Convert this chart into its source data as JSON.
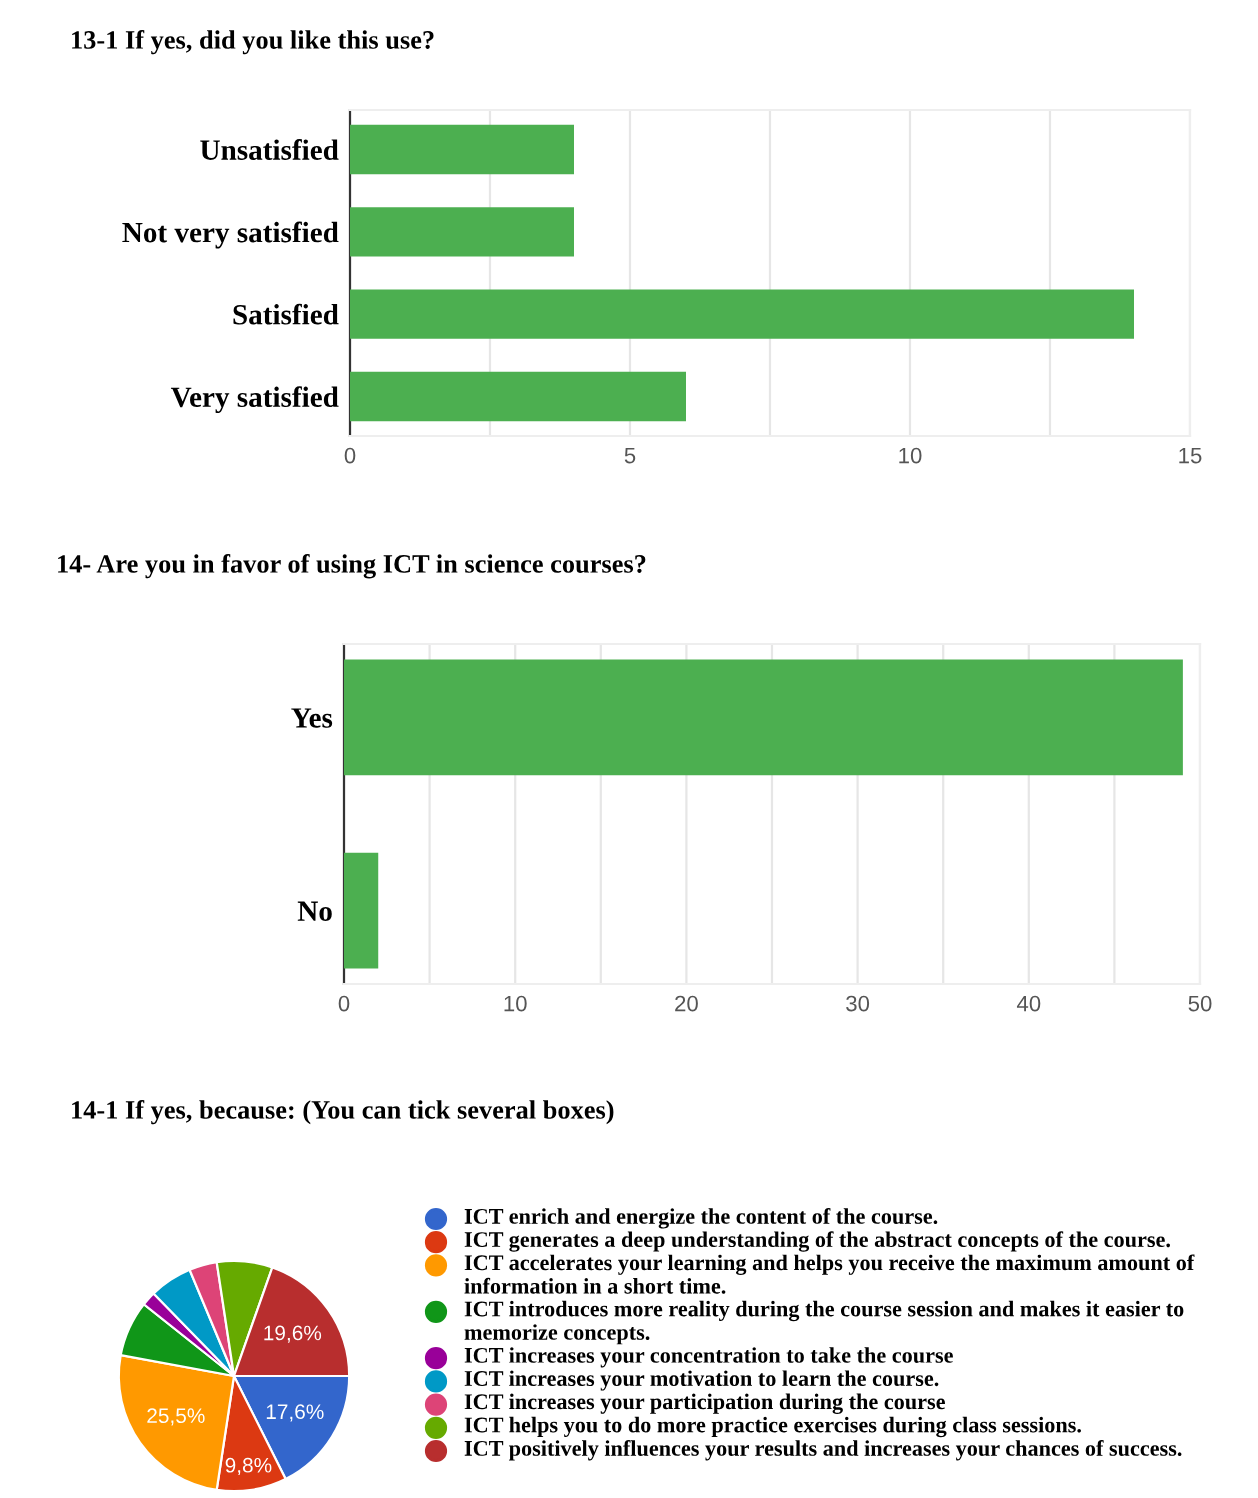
{
  "chart_data": [
    {
      "type": "bar",
      "title": "13-1 If yes, did you like this use?",
      "orientation": "horizontal",
      "categories": [
        "Unsatisfied",
        "Not very satisfied",
        "Satisfied",
        "Very satisfied"
      ],
      "values": [
        4,
        4,
        14,
        6
      ],
      "color": "#4caf50",
      "xlim": [
        0,
        15
      ],
      "xticks": [
        0,
        {
          "value": 2.5,
          "label": null
        },
        5,
        {
          "value": 7.5,
          "label": null
        },
        10,
        {
          "value": 12.5,
          "label": null
        },
        15
      ],
      "grid": "x"
    },
    {
      "type": "bar",
      "title": "14- Are you in favor of using ICT in science courses?",
      "orientation": "horizontal",
      "categories": [
        "Yes",
        "No"
      ],
      "values": [
        49,
        2
      ],
      "color": "#4caf50",
      "xlim": [
        0,
        50
      ],
      "xticks": [
        0,
        {
          "value": 5,
          "label": null
        },
        10,
        {
          "value": 15,
          "label": null
        },
        20,
        {
          "value": 25,
          "label": null
        },
        30,
        {
          "value": 35,
          "label": null
        },
        40,
        {
          "value": 45,
          "label": null
        },
        50
      ],
      "grid": "x"
    },
    {
      "type": "pie",
      "title": "14-1 If yes, because: (You can tick several boxes)",
      "legend": "right",
      "categories": [
        "ICT enrich and energize the content of the course.",
        "ICT generates a deep understanding of the abstract concepts of the course.",
        "ICT accelerates your learning and helps you receive the maximum amount of information in a short time.",
        "ICT introduces more reality during the course session and makes it easier to memorize concepts.",
        "ICT increases your concentration to take the course",
        "ICT increases your motivation to learn the course.",
        "ICT increases your participation during the course",
        "ICT helps you to do more practice exercises during class sessions.",
        "ICT positively influences your results and increases your chances of success."
      ],
      "values": [
        17.6,
        9.8,
        25.5,
        7.8,
        2.0,
        6.0,
        3.9,
        7.8,
        19.6
      ],
      "value_labels": [
        "17,6%",
        "9,8%",
        "25,5%",
        null,
        null,
        null,
        null,
        null,
        "19,6%"
      ],
      "colors": [
        "#3366cc",
        "#dc3912",
        "#ff9900",
        "#109618",
        "#990099",
        "#0099c6",
        "#dd4477",
        "#66aa00",
        "#b82e2e"
      ]
    }
  ]
}
